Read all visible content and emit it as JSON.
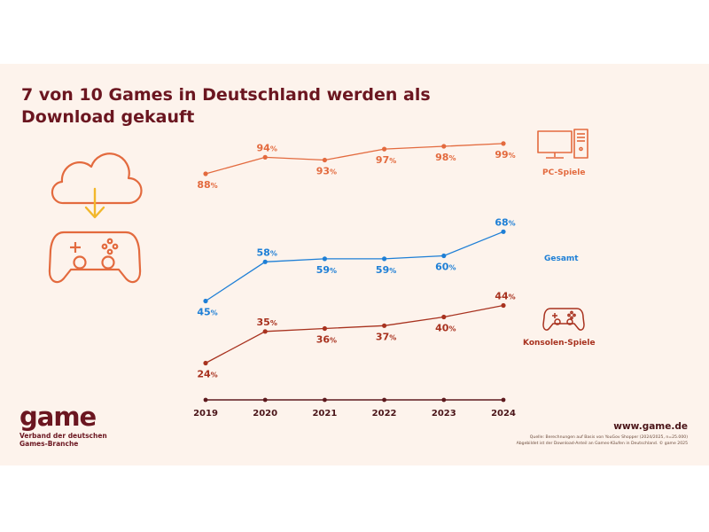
{
  "title_lines": [
    "7 von 10 Games in Deutschland werden als",
    "Download gekauft"
  ],
  "logo": {
    "word": "game",
    "subtitle_lines": [
      "Verband der deutschen",
      "Games-Branche"
    ]
  },
  "website": "www.game.de",
  "source_lines": [
    "Quelle: Berechnungen auf Basis von YouGov Shopper (2024/2025, n=25.000)",
    "Abgebildet ist der Download-Anteil an Games-Käufen in Deutschland. © game 2025"
  ],
  "icons": {
    "left": [
      "cloud-download-icon",
      "gamepad-icon"
    ],
    "pc": "pc-monitor-tower-icon",
    "console": "gamepad-icon"
  },
  "colors": {
    "background": "#fdf3ec",
    "pc": "#e36a3e",
    "gesamt": "#1e7fd6",
    "konsolen": "#a8321f",
    "axis": "#5e1a1e",
    "arrow": "#f2b72b",
    "title": "#6b1620"
  },
  "chart_data": {
    "type": "line",
    "title": "7 von 10 Games in Deutschland werden als Download gekauft",
    "x": [
      "2019",
      "2020",
      "2021",
      "2022",
      "2023",
      "2024"
    ],
    "unit": "%",
    "series": [
      {
        "name": "PC-Spiele",
        "values": [
          88,
          94,
          93,
          97,
          98,
          99
        ],
        "color": "#e36a3e"
      },
      {
        "name": "Gesamt",
        "values": [
          45,
          58,
          59,
          59,
          60,
          68
        ],
        "color": "#1e7fd6"
      },
      {
        "name": "Konsolen-Spiele",
        "values": [
          24,
          35,
          36,
          37,
          40,
          44
        ],
        "color": "#a8321f"
      }
    ],
    "grid": false,
    "legend": "right"
  }
}
